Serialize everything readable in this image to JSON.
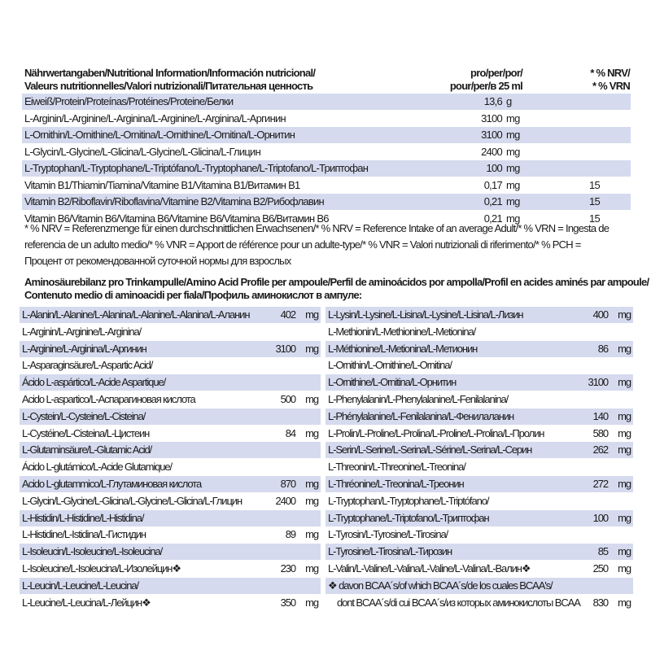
{
  "nutrition": {
    "header_left": [
      "Nährwertangaben/Nutritional Information/Información nutricional/",
      "Valeurs nutritionnelles/Valori nutrizionali/Питательная ценность"
    ],
    "header_mid": [
      "pro/per/por/",
      "pour/per/в 25 ml"
    ],
    "header_right": [
      "* % NRV/",
      "* % VRN"
    ],
    "rows": [
      {
        "name": "Eiweiß/Protein/Proteínas/Protéines/Proteine/Белки",
        "value": "13,6",
        "unit": "g",
        "nrv": ""
      },
      {
        "name": "L-Arginin/L-Arginine/L-Arginina/L-Arginine/L-Arginina/L-Аргинин",
        "value": "3100",
        "unit": "mg",
        "nrv": ""
      },
      {
        "name": "L-Ornithin/L-Ornithine/L-Ornitina/L-Ornithine/L-Ornitina/L-Орнитин",
        "value": "3100",
        "unit": "mg",
        "nrv": ""
      },
      {
        "name": "L-Glycin/L-Glycine/L-Glicina/L-Glycine/L-Glicina/L-Глицин",
        "value": "2400",
        "unit": "mg",
        "nrv": ""
      },
      {
        "name": "L-Tryptophan/L-Tryptophane/L-Triptófano/L-Tryptophane/L-Triptofano/L-Триптофан",
        "value": "100",
        "unit": "mg",
        "nrv": ""
      },
      {
        "name": "Vitamin B1/Thiamin/Tiamina/Vitamine B1/Vitamina B1/Витамин B1",
        "value": "0,17",
        "unit": "mg",
        "nrv": "15"
      },
      {
        "name": "Vitamin B2/Riboflavin/Riboflavina/Vitamine B2/Vitamina B2/Рибофлавин",
        "value": "0,21",
        "unit": "mg",
        "nrv": "15"
      },
      {
        "name": "Vitamin B6/Vitamin B6/Vitamina B6/Vitamine B6/Vitamina B6/Витамин B6",
        "value": "0,21",
        "unit": "mg",
        "nrv": "15"
      }
    ],
    "footnote": [
      "* % NRV = Referenzmenge für einen durchschnittlichen Erwachsenen/* % NRV = Reference Intake of an average Adult/* % VRN = Ingesta de",
      "referencia de un adulto medio/* % VNR = Apport de référence pour un adulte-type/* % VNR = Valori nutrizionali di riferimento/* % PCH =",
      "Процент от рекомендованной суточной нормы для взрослых"
    ]
  },
  "amino": {
    "title": [
      "Aminosäurebilanz pro Trinkampulle/Amino Acid Profile per ampoule/Perfil de aminoácidos por ampolla/Profil en acides aminés par ampoule/",
      "Contenuto medio di aminoacidi per fiala/Профиль аминокислот в ампуле:"
    ],
    "left": [
      {
        "name": "L-Alanin/L-Alanine/L-Alanina/L-Alanine/L-Alanina/L-Аланин",
        "value": "402",
        "unit": "mg"
      },
      {
        "name": "L-Arginin/L-Arginine/L-Arginina/",
        "value": "",
        "unit": ""
      },
      {
        "name": "L-Arginine/L-Arginina/L-Аргинин",
        "value": "3100",
        "unit": "mg"
      },
      {
        "name": "L-Asparaginsäure/L-Aspartic Acid/",
        "value": "",
        "unit": ""
      },
      {
        "name": "Ácido L-aspártico/L-Acide Aspartique/",
        "value": "",
        "unit": ""
      },
      {
        "name": "Acido L-aspartico/L-Аспарагиновая кислота",
        "value": "500",
        "unit": "mg"
      },
      {
        "name": "L-Cystein/L-Cysteine/L-Cisteina/",
        "value": "",
        "unit": ""
      },
      {
        "name": "L-Cystéine/L-Cisteina/L-Цистеин",
        "value": "84",
        "unit": "mg"
      },
      {
        "name": "L-Glutaminsäure/L-Glutamic Acid/",
        "value": "",
        "unit": ""
      },
      {
        "name": "Ácido L-glutámico/L-Acide Glutamique/",
        "value": "",
        "unit": ""
      },
      {
        "name": "Acido L-glutammico/L-Глутаминовая кислота",
        "value": "870",
        "unit": "mg"
      },
      {
        "name": "L-Glycin/L-Glycine/L-Glicina/L-Glycine/L-Glicina/L-Глицин",
        "value": "2400",
        "unit": "mg"
      },
      {
        "name": "L-Histidin/L-Histidine/L-Histidina/",
        "value": "",
        "unit": ""
      },
      {
        "name": "L-Histidine/L-Istidina/L-Гистидин",
        "value": "89",
        "unit": "mg"
      },
      {
        "name": "L-Isoleucin/L-Isoleucine/L-Isoleucina/",
        "value": "",
        "unit": ""
      },
      {
        "name": "L-Isoleucine/L-Isoleucina/L-Изолейцин❖",
        "value": "230",
        "unit": "mg"
      },
      {
        "name": "L-Leucin/L-Leucine/L-Leucina/",
        "value": "",
        "unit": ""
      },
      {
        "name": "L-Leucine/L-Leucina/L-Лейцин❖",
        "value": "350",
        "unit": "mg"
      }
    ],
    "right": [
      {
        "name": "L-Lysin/L-Lysine/L-Lisina/L-Lysine/L-Lisina/L-Лизин",
        "value": "400",
        "unit": "mg"
      },
      {
        "name": "L-Methionin/L-Methionine/L-Metionina/",
        "value": "",
        "unit": ""
      },
      {
        "name": "L-Méthionine/L-Metionina/L-Метионин",
        "value": "86",
        "unit": "mg"
      },
      {
        "name": "L-Ornithin/L-Ornithine/L-Ornitina/",
        "value": "",
        "unit": ""
      },
      {
        "name": "L-Ornithine/L-Ornitina/L-Орнитин",
        "value": "3100",
        "unit": "mg"
      },
      {
        "name": "L-Phenylalanin/L-Phenylalanine/L-Fenilalanina/",
        "value": "",
        "unit": ""
      },
      {
        "name": "L-Phénylalanine/L-Fenilalanina/L-Фенилаланин",
        "value": "140",
        "unit": "mg"
      },
      {
        "name": "L-Prolin/L-Proline/L-Prolina/L-Proline/L-Prolina/L-Пролин",
        "value": "580",
        "unit": "mg"
      },
      {
        "name": "L-Serin/L-Serine/L-Serina/L-Sérine/L-Serina/L-Серин",
        "value": "262",
        "unit": "mg"
      },
      {
        "name": "L-Threonin/L-Threonine/L-Treonina/",
        "value": "",
        "unit": ""
      },
      {
        "name": "L-Thréonine/L-Treonina/L-Треонин",
        "value": "272",
        "unit": "mg"
      },
      {
        "name": "L-Tryptophan/L-Tryptophane/L-Triptófano/",
        "value": "",
        "unit": ""
      },
      {
        "name": "L-Tryptophane/L-Triptofano/L-Триптофан",
        "value": "100",
        "unit": "mg"
      },
      {
        "name": "L-Tyrosin/L-Tyrosine/L-Tirosina/",
        "value": "",
        "unit": ""
      },
      {
        "name": "L-Tyrosine/L-Tirosina/L-Тирозин",
        "value": "85",
        "unit": "mg"
      },
      {
        "name": "L-Valin/L-Valine/L-Valina/L-Valine/L-Valina/L-Валин❖",
        "value": "250",
        "unit": "mg"
      },
      {
        "name": "❖ davon BCAA´s/of which BCAA´s/de los cuales BCAA's/",
        "value": "",
        "unit": ""
      },
      {
        "name": "dont BCAA´s/di cui BCAA´s/из которых аминокислоты BCAA",
        "value": "830",
        "unit": "mg"
      }
    ]
  },
  "colors": {
    "stripe": "#d5daee",
    "text": "#1a1a1a"
  }
}
